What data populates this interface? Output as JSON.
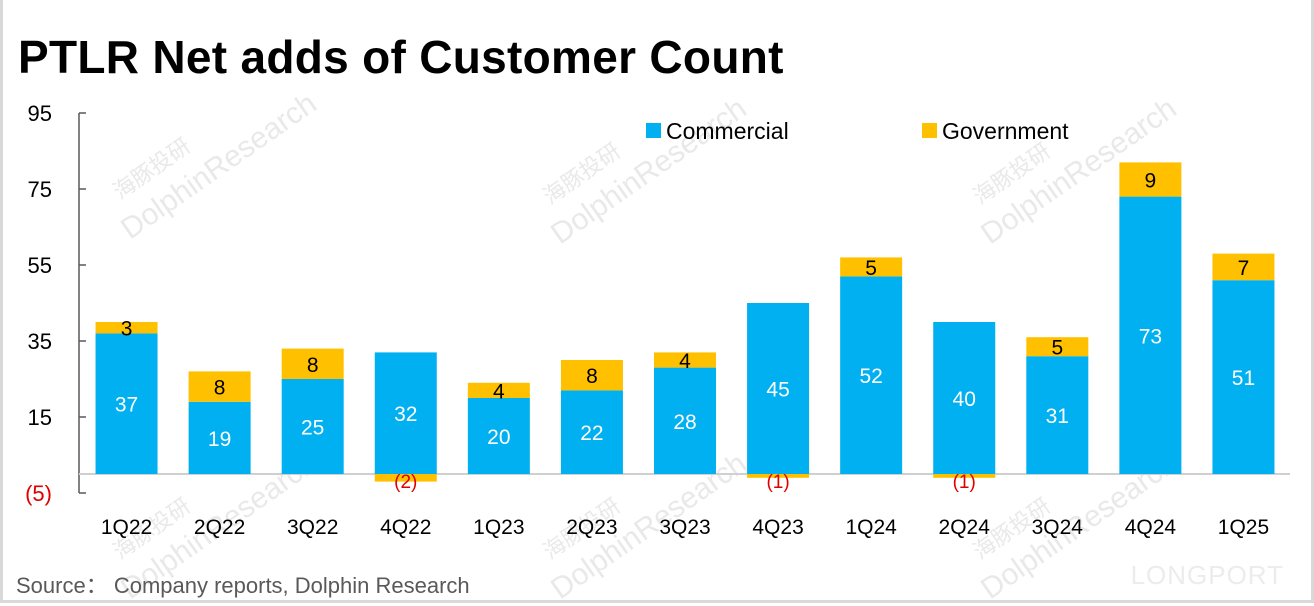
{
  "chart_data": {
    "type": "bar",
    "stacked": true,
    "title": "PTLR Net adds of Customer Count",
    "categories": [
      "1Q22",
      "2Q22",
      "3Q22",
      "4Q22",
      "1Q23",
      "2Q23",
      "3Q23",
      "4Q23",
      "1Q24",
      "2Q24",
      "3Q24",
      "4Q24",
      "1Q25"
    ],
    "series": [
      {
        "name": "Commercial",
        "color": "#00B0F0",
        "values": [
          37,
          19,
          25,
          32,
          20,
          22,
          28,
          45,
          52,
          40,
          31,
          73,
          51
        ]
      },
      {
        "name": "Government",
        "color": "#FFC000",
        "values": [
          3,
          8,
          8,
          -2,
          4,
          8,
          4,
          -1,
          5,
          -1,
          5,
          9,
          7
        ]
      }
    ],
    "value_labels": {
      "Commercial": [
        "37",
        "19",
        "25",
        "32",
        "20",
        "22",
        "28",
        "45",
        "52",
        "40",
        "31",
        "73",
        "51"
      ],
      "Government": [
        "3",
        "8",
        "8",
        "(2)",
        "4",
        "8",
        "4",
        "(1)",
        "5",
        "(1)",
        "5",
        "9",
        "7"
      ]
    },
    "yticks": [
      95,
      75,
      55,
      35,
      15,
      -5
    ],
    "ytick_labels": [
      "95",
      "75",
      "55",
      "35",
      "15",
      "(5)"
    ],
    "ylim": [
      -5,
      95
    ],
    "xlabel": "",
    "ylabel": "",
    "grid": false,
    "legend_position": "top-right",
    "negative_color": "#E00000"
  },
  "source": "Source：  Company reports, Dolphin Research",
  "watermarks": {
    "brand": "LONGPORT",
    "text_cn": "海豚投研",
    "text_en": "DolphinResearch"
  }
}
